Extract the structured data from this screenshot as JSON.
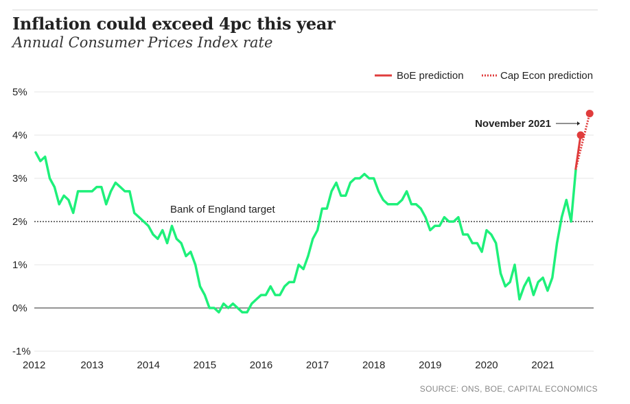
{
  "header": {
    "title": "Inflation could exceed 4pc this year",
    "subtitle": "Annual Consumer Prices Index rate"
  },
  "source": "SOURCE: ONS, BOE, CAPITAL ECONOMICS",
  "colors": {
    "cpi": "#1ef07a",
    "prediction": "#e03c3c",
    "target": "#444444",
    "grid": "#e6e6e6"
  },
  "chart_data": {
    "type": "line",
    "ylim": [
      -1,
      5
    ],
    "xlim": [
      2012.0,
      2021.9
    ],
    "grid": true,
    "legend_position": "top-right",
    "y_ticks": [
      {
        "v": 5,
        "label": "5%"
      },
      {
        "v": 4,
        "label": "4%"
      },
      {
        "v": 3,
        "label": "3%"
      },
      {
        "v": 2,
        "label": "2%"
      },
      {
        "v": 1,
        "label": "1%"
      },
      {
        "v": 0,
        "label": "0%"
      },
      {
        "v": -1,
        "label": "-1%"
      }
    ],
    "x_ticks": [
      "2012",
      "2013",
      "2014",
      "2015",
      "2016",
      "2017",
      "2018",
      "2019",
      "2020",
      "2021"
    ],
    "legend": [
      "BoE prediction",
      "Cap Econ prediction"
    ],
    "target": {
      "value": 2,
      "label": "Bank of England target"
    },
    "annotation": "November 2021",
    "cpi_start_year": 2012,
    "cpi_values": [
      3.6,
      3.4,
      3.5,
      3.0,
      2.8,
      2.4,
      2.6,
      2.5,
      2.2,
      2.7,
      2.7,
      2.7,
      2.7,
      2.8,
      2.8,
      2.4,
      2.7,
      2.9,
      2.8,
      2.7,
      2.7,
      2.2,
      2.1,
      2.0,
      1.9,
      1.7,
      1.6,
      1.8,
      1.5,
      1.9,
      1.6,
      1.5,
      1.2,
      1.3,
      1.0,
      0.5,
      0.3,
      0.0,
      0.0,
      -0.1,
      0.1,
      0.0,
      0.1,
      0.0,
      -0.1,
      -0.1,
      0.1,
      0.2,
      0.3,
      0.3,
      0.5,
      0.3,
      0.3,
      0.5,
      0.6,
      0.6,
      1.0,
      0.9,
      1.2,
      1.6,
      1.8,
      2.3,
      2.3,
      2.7,
      2.9,
      2.6,
      2.6,
      2.9,
      3.0,
      3.0,
      3.1,
      3.0,
      3.0,
      2.7,
      2.5,
      2.4,
      2.4,
      2.4,
      2.5,
      2.7,
      2.4,
      2.4,
      2.3,
      2.1,
      1.8,
      1.9,
      1.9,
      2.1,
      2.0,
      2.0,
      2.1,
      1.7,
      1.7,
      1.5,
      1.5,
      1.3,
      1.8,
      1.7,
      1.5,
      0.8,
      0.5,
      0.6,
      1.0,
      0.2,
      0.5,
      0.7,
      0.3,
      0.6,
      0.7,
      0.4,
      0.7,
      1.5,
      2.1,
      2.5,
      2.0,
      3.2
    ],
    "boe_prediction": [
      {
        "x": 2021.58,
        "y": 3.2
      },
      {
        "x": 2021.67,
        "y": 4.0
      }
    ],
    "capecon_prediction": [
      {
        "x": 2021.58,
        "y": 3.2
      },
      {
        "x": 2021.83,
        "y": 4.5
      }
    ]
  }
}
